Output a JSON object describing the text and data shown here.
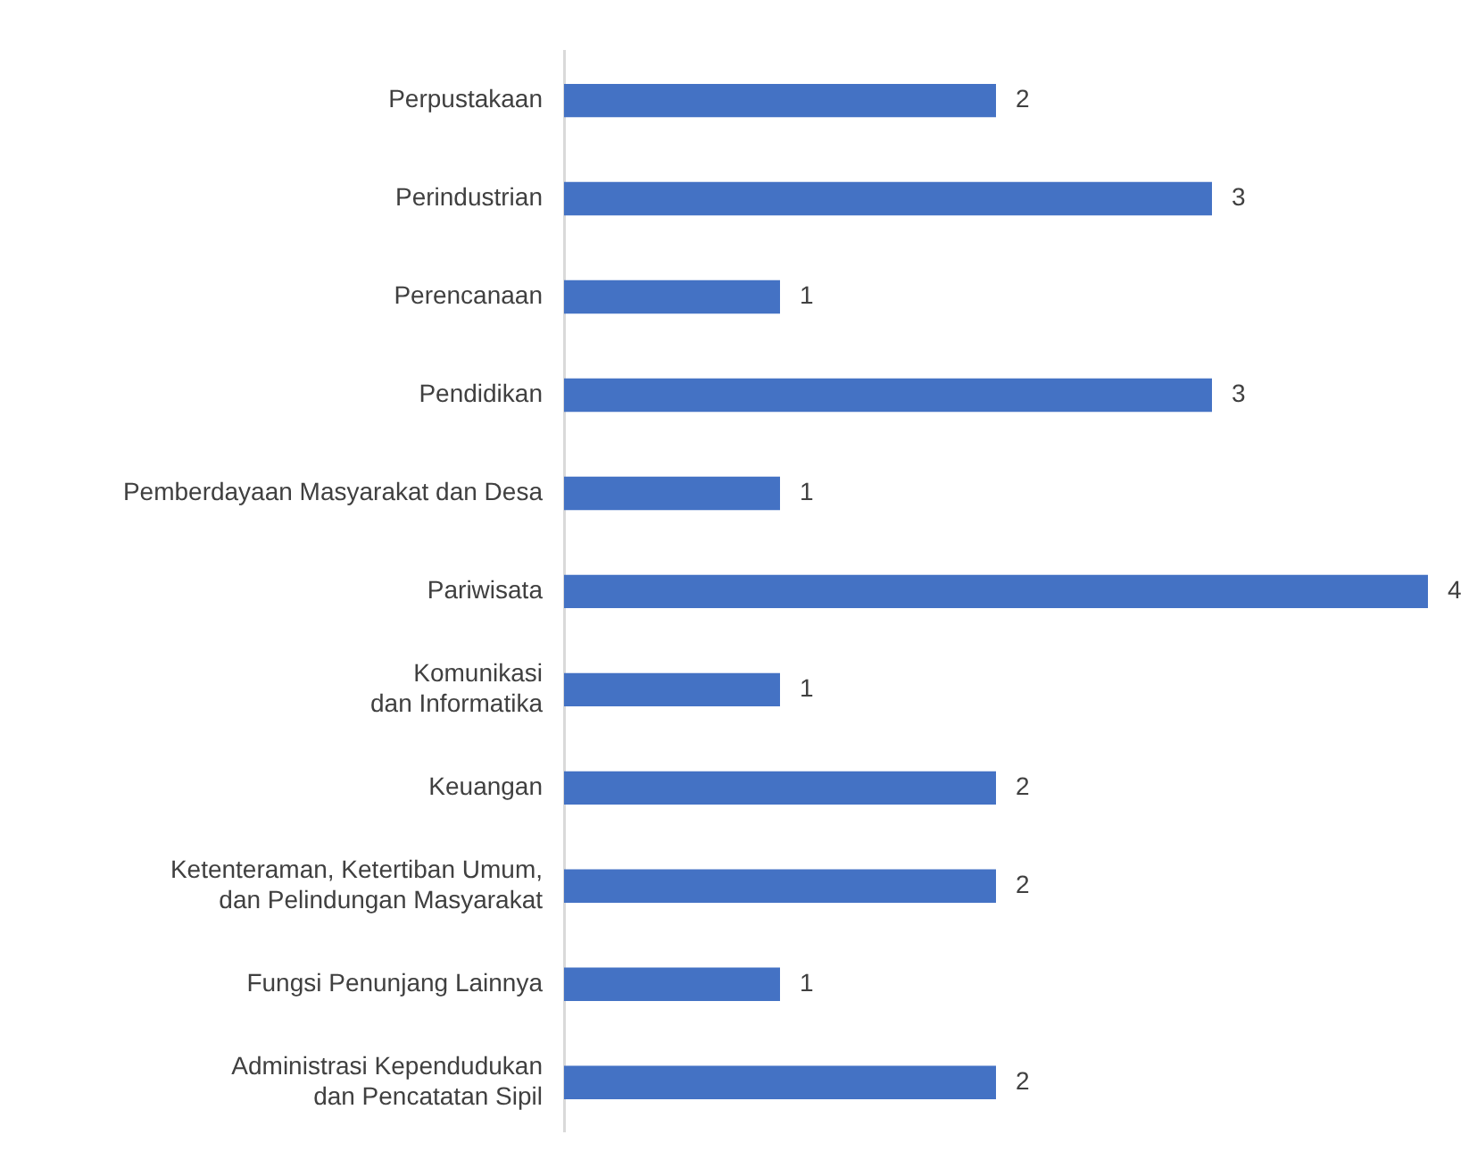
{
  "chart_data": {
    "type": "bar",
    "orientation": "horizontal",
    "categories": [
      "Perpustakaan",
      "Perindustrian",
      "Perencanaan",
      "Pendidikan",
      "Pemberdayaan Masyarakat dan Desa",
      "Pariwisata",
      "Komunikasi\ndan Informatika",
      "Keuangan",
      "Ketenteraman, Ketertiban Umum,\ndan Pelindungan Masyarakat",
      "Fungsi Penunjang Lainnya",
      "Administrasi Kependudukan\ndan Pencatatan Sipil"
    ],
    "values": [
      2,
      3,
      1,
      3,
      1,
      4,
      1,
      2,
      2,
      1,
      2
    ],
    "color": "#4472c4",
    "data_labels": true
  }
}
